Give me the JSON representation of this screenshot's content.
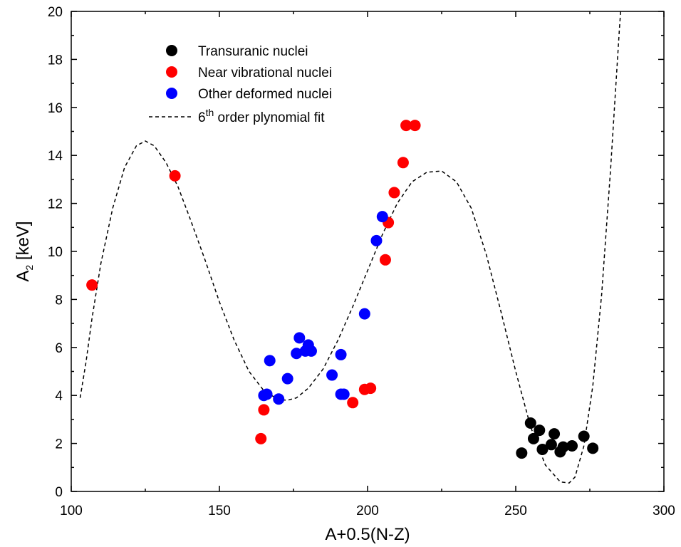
{
  "chart_data": {
    "type": "scatter",
    "xlabel": "A+0.5(N-Z)",
    "ylabel_main": "A",
    "ylabel_sub": "2",
    "ylabel_unit": " [keV]",
    "xlim": [
      100,
      300
    ],
    "ylim": [
      0,
      20
    ],
    "xticks": [
      100,
      150,
      200,
      250,
      300
    ],
    "yticks": [
      0,
      2,
      4,
      6,
      8,
      10,
      12,
      14,
      16,
      18,
      20
    ],
    "grid": false,
    "legend_position": "top-left",
    "series": [
      {
        "name": "Transuranic nuclei",
        "color": "#000000",
        "points": [
          [
            252,
            1.6
          ],
          [
            255,
            2.85
          ],
          [
            256,
            2.2
          ],
          [
            258,
            2.55
          ],
          [
            259,
            1.75
          ],
          [
            262,
            1.95
          ],
          [
            263,
            2.4
          ],
          [
            265,
            1.65
          ],
          [
            266,
            1.85
          ],
          [
            269,
            1.9
          ],
          [
            273,
            2.3
          ],
          [
            276,
            1.8
          ]
        ]
      },
      {
        "name": "Near vibrational nuclei",
        "color": "#ff0000",
        "points": [
          [
            107,
            8.6
          ],
          [
            135,
            13.15
          ],
          [
            164,
            2.2
          ],
          [
            165,
            3.4
          ],
          [
            195,
            3.7
          ],
          [
            199,
            4.25
          ],
          [
            201,
            4.3
          ],
          [
            206,
            9.65
          ],
          [
            207,
            11.2
          ],
          [
            209,
            12.45
          ],
          [
            212,
            13.7
          ],
          [
            213,
            15.25
          ],
          [
            216,
            15.25
          ]
        ]
      },
      {
        "name": "Other deformed nuclei",
        "color": "#0000ff",
        "points": [
          [
            165,
            4.0
          ],
          [
            166,
            4.05
          ],
          [
            167,
            5.45
          ],
          [
            170,
            3.85
          ],
          [
            173,
            4.7
          ],
          [
            176,
            5.75
          ],
          [
            177,
            6.4
          ],
          [
            179,
            5.85
          ],
          [
            180,
            6.1
          ],
          [
            181,
            5.85
          ],
          [
            188,
            4.85
          ],
          [
            191,
            5.7
          ],
          [
            191,
            4.05
          ],
          [
            192,
            4.05
          ],
          [
            199,
            7.4
          ],
          [
            203,
            10.45
          ],
          [
            205,
            11.45
          ]
        ]
      }
    ],
    "fit": {
      "name_prefix": "6",
      "name_sup": "th",
      "name_suffix": " order plynomial fit",
      "style": "dashed",
      "color": "#000000",
      "points": [
        [
          103,
          3.9
        ],
        [
          105,
          5.4
        ],
        [
          107,
          7.2
        ],
        [
          110,
          9.5
        ],
        [
          114,
          11.8
        ],
        [
          118,
          13.5
        ],
        [
          122,
          14.4
        ],
        [
          125,
          14.6
        ],
        [
          128,
          14.4
        ],
        [
          132,
          13.7
        ],
        [
          136,
          12.7
        ],
        [
          140,
          11.4
        ],
        [
          145,
          9.7
        ],
        [
          150,
          7.9
        ],
        [
          155,
          6.3
        ],
        [
          160,
          5.0
        ],
        [
          165,
          4.2
        ],
        [
          170,
          3.82
        ],
        [
          173,
          3.8
        ],
        [
          176,
          3.9
        ],
        [
          180,
          4.3
        ],
        [
          185,
          5.1
        ],
        [
          190,
          6.3
        ],
        [
          195,
          7.7
        ],
        [
          200,
          9.2
        ],
        [
          205,
          10.7
        ],
        [
          210,
          12.0
        ],
        [
          215,
          12.9
        ],
        [
          220,
          13.3
        ],
        [
          225,
          13.35
        ],
        [
          230,
          12.9
        ],
        [
          235,
          11.8
        ],
        [
          240,
          9.9
        ],
        [
          245,
          7.5
        ],
        [
          250,
          5.0
        ],
        [
          255,
          2.7
        ],
        [
          260,
          1.1
        ],
        [
          265,
          0.4
        ],
        [
          268,
          0.35
        ],
        [
          270,
          0.6
        ],
        [
          273,
          1.9
        ],
        [
          276,
          4.4
        ],
        [
          279,
          8.2
        ],
        [
          282,
          13.4
        ],
        [
          285,
          19.3
        ],
        [
          285.4,
          20.0
        ]
      ]
    }
  }
}
